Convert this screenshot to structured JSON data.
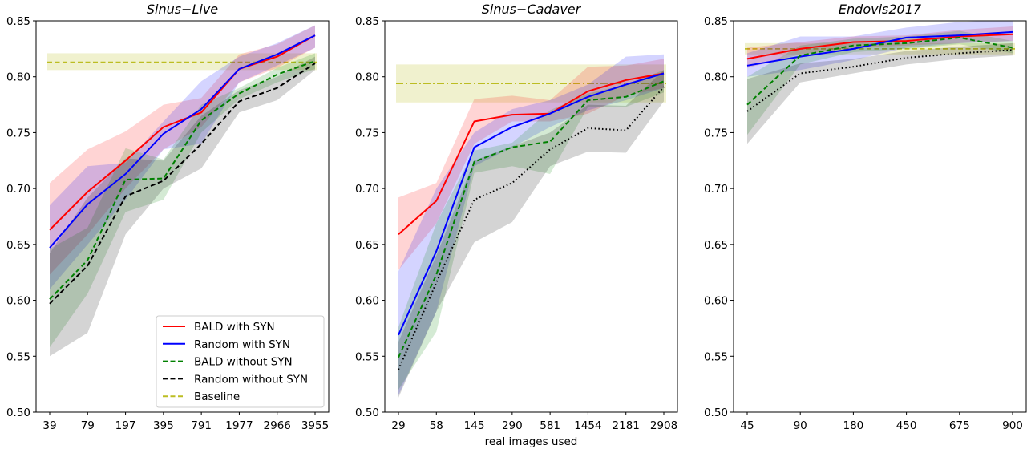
{
  "chart_data": [
    {
      "type": "line",
      "title": "Sinus−Live",
      "xlabel": "",
      "ylabel": "",
      "categories": [
        "39",
        "79",
        "197",
        "395",
        "791",
        "1977",
        "2966",
        "3955"
      ],
      "ylim": [
        0.5,
        0.85
      ],
      "yticks": [
        "0.50",
        "0.55",
        "0.60",
        "0.65",
        "0.70",
        "0.75",
        "0.80",
        "0.85"
      ],
      "baseline": {
        "name": "Baseline",
        "value": 0.813,
        "low": 0.806,
        "high": 0.821,
        "color": "#bcbd22",
        "dash": "dashed"
      },
      "series": [
        {
          "name": "BALD with SYN",
          "color": "#ff0000",
          "dash": "solid",
          "values": [
            0.663,
            0.697,
            0.725,
            0.755,
            0.768,
            0.807,
            0.818,
            0.837
          ],
          "low": [
            0.623,
            0.659,
            0.7,
            0.735,
            0.755,
            0.795,
            0.808,
            0.826
          ],
          "high": [
            0.705,
            0.735,
            0.751,
            0.775,
            0.781,
            0.82,
            0.829,
            0.846
          ]
        },
        {
          "name": "Random with SYN",
          "color": "#0000ff",
          "dash": "solid",
          "values": [
            0.647,
            0.686,
            0.713,
            0.749,
            0.771,
            0.807,
            0.82,
            0.837
          ],
          "low": [
            0.61,
            0.65,
            0.69,
            0.735,
            0.74,
            0.795,
            0.81,
            0.826
          ],
          "high": [
            0.685,
            0.72,
            0.723,
            0.76,
            0.796,
            0.818,
            0.83,
            0.846
          ]
        },
        {
          "name": "BALD without SYN",
          "color": "#008000",
          "dash": "dashed",
          "values": [
            0.601,
            0.636,
            0.708,
            0.709,
            0.761,
            0.785,
            0.802,
            0.814
          ],
          "low": [
            0.558,
            0.606,
            0.679,
            0.69,
            0.75,
            0.78,
            0.795,
            0.807
          ],
          "high": [
            0.646,
            0.665,
            0.736,
            0.726,
            0.775,
            0.79,
            0.808,
            0.821
          ]
        },
        {
          "name": "Random without SYN",
          "color": "#000000",
          "dash": "dashed",
          "values": [
            0.597,
            0.631,
            0.693,
            0.707,
            0.74,
            0.778,
            0.79,
            0.812
          ],
          "low": [
            0.55,
            0.571,
            0.659,
            0.7,
            0.718,
            0.768,
            0.779,
            0.806
          ],
          "high": [
            0.642,
            0.692,
            0.727,
            0.725,
            0.765,
            0.788,
            0.8,
            0.818
          ]
        }
      ],
      "legend": {
        "placement": "lower-right",
        "entries": [
          "BALD with SYN",
          "Random with SYN",
          "BALD without SYN",
          "Random without SYN",
          "Baseline"
        ]
      },
      "grid": false
    },
    {
      "type": "line",
      "title": "Sinus−Cadaver",
      "xlabel": "real images used",
      "ylabel": "",
      "categories": [
        "29",
        "58",
        "145",
        "290",
        "581",
        "1454",
        "2181",
        "2908"
      ],
      "ylim": [
        0.5,
        0.85
      ],
      "yticks": [
        "0.50",
        "0.55",
        "0.60",
        "0.65",
        "0.70",
        "0.75",
        "0.80",
        "0.85"
      ],
      "baseline": {
        "name": "Baseline",
        "value": 0.794,
        "low": 0.777,
        "high": 0.811,
        "color": "#bcbd22",
        "dash": "dashdot"
      },
      "series": [
        {
          "name": "BALD with SYN",
          "color": "#ff0000",
          "dash": "solid",
          "values": [
            0.659,
            0.689,
            0.76,
            0.766,
            0.767,
            0.787,
            0.797,
            0.803
          ],
          "low": [
            0.627,
            0.669,
            0.74,
            0.76,
            0.76,
            0.767,
            0.783,
            0.79
          ],
          "high": [
            0.692,
            0.705,
            0.78,
            0.783,
            0.779,
            0.809,
            0.81,
            0.816
          ]
        },
        {
          "name": "Random with SYN",
          "color": "#0000ff",
          "dash": "solid",
          "values": [
            0.569,
            0.644,
            0.737,
            0.755,
            0.767,
            0.782,
            0.793,
            0.803
          ],
          "low": [
            0.515,
            0.59,
            0.72,
            0.737,
            0.755,
            0.77,
            0.779,
            0.79
          ],
          "high": [
            0.626,
            0.7,
            0.75,
            0.771,
            0.779,
            0.793,
            0.818,
            0.82
          ]
        },
        {
          "name": "BALD without SYN",
          "color": "#008000",
          "dash": "dashed",
          "values": [
            0.549,
            0.623,
            0.724,
            0.737,
            0.742,
            0.779,
            0.782,
            0.796
          ],
          "low": [
            0.52,
            0.572,
            0.714,
            0.72,
            0.713,
            0.773,
            0.773,
            0.786
          ],
          "high": [
            0.576,
            0.669,
            0.734,
            0.741,
            0.77,
            0.785,
            0.793,
            0.806
          ]
        },
        {
          "name": "Random without SYN",
          "color": "#000000",
          "dash": "dotted",
          "values": [
            0.538,
            0.616,
            0.69,
            0.705,
            0.735,
            0.754,
            0.752,
            0.791
          ],
          "low": [
            0.513,
            0.59,
            0.652,
            0.67,
            0.72,
            0.733,
            0.732,
            0.778
          ],
          "high": [
            0.563,
            0.64,
            0.725,
            0.738,
            0.75,
            0.775,
            0.774,
            0.806
          ]
        }
      ],
      "grid": false
    },
    {
      "type": "line",
      "title": "Endovis2017",
      "xlabel": "",
      "ylabel": "",
      "categories": [
        "45",
        "90",
        "180",
        "450",
        "675",
        "900"
      ],
      "ylim": [
        0.5,
        0.85
      ],
      "yticks": [
        "0.50",
        "0.55",
        "0.60",
        "0.65",
        "0.70",
        "0.75",
        "0.80",
        "0.85"
      ],
      "baseline": {
        "name": "Baseline",
        "value": 0.825,
        "low": 0.82,
        "high": 0.83,
        "color": "#bcbd22",
        "dash": "dashed"
      },
      "series": [
        {
          "name": "BALD with SYN",
          "color": "#ff0000",
          "dash": "solid",
          "values": [
            0.816,
            0.825,
            0.831,
            0.832,
            0.836,
            0.838
          ],
          "low": [
            0.808,
            0.82,
            0.826,
            0.828,
            0.83,
            0.832
          ],
          "high": [
            0.826,
            0.831,
            0.836,
            0.837,
            0.842,
            0.845
          ]
        },
        {
          "name": "Random with SYN",
          "color": "#0000ff",
          "dash": "solid",
          "values": [
            0.81,
            0.818,
            0.825,
            0.835,
            0.837,
            0.84
          ],
          "low": [
            0.8,
            0.806,
            0.815,
            0.826,
            0.83,
            0.832
          ],
          "high": [
            0.821,
            0.836,
            0.836,
            0.844,
            0.849,
            0.851
          ]
        },
        {
          "name": "BALD without SYN",
          "color": "#008000",
          "dash": "dashed",
          "values": [
            0.775,
            0.819,
            0.828,
            0.83,
            0.835,
            0.826
          ],
          "low": [
            0.748,
            0.811,
            0.822,
            0.825,
            0.829,
            0.821
          ],
          "high": [
            0.8,
            0.828,
            0.834,
            0.836,
            0.841,
            0.832
          ]
        },
        {
          "name": "Random without SYN",
          "color": "#000000",
          "dash": "dotted",
          "values": [
            0.769,
            0.803,
            0.809,
            0.817,
            0.821,
            0.824
          ],
          "low": [
            0.74,
            0.795,
            0.803,
            0.811,
            0.816,
            0.819
          ],
          "high": [
            0.798,
            0.812,
            0.816,
            0.823,
            0.827,
            0.83
          ]
        }
      ],
      "grid": false
    }
  ]
}
